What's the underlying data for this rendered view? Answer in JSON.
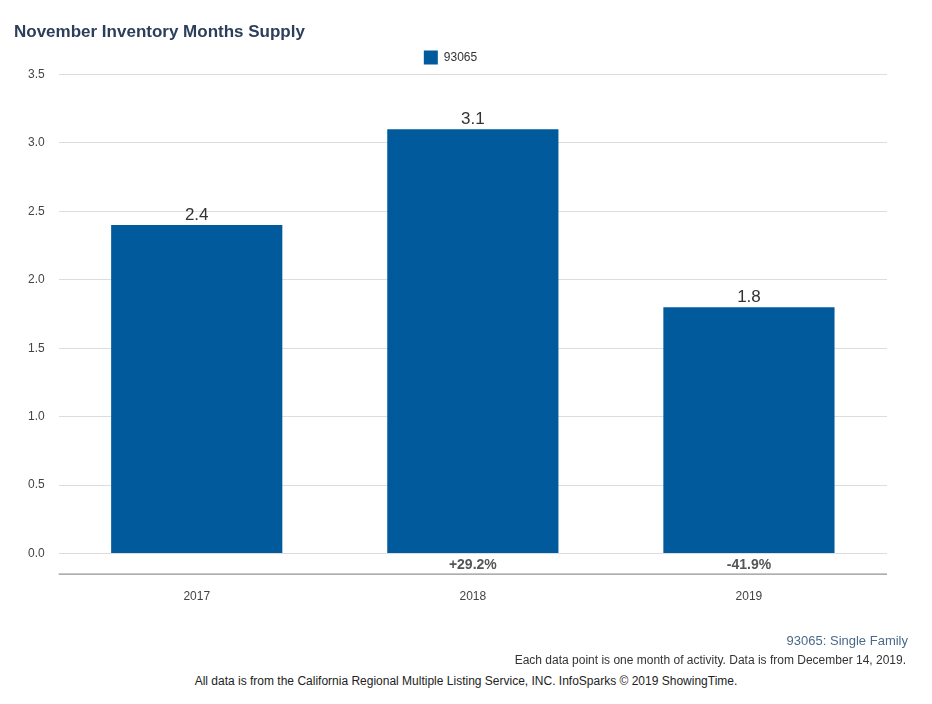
{
  "chart_data": {
    "type": "bar",
    "title": "November Inventory Months Supply",
    "categories": [
      "2017",
      "2018",
      "2019"
    ],
    "series": [
      {
        "name": "93065",
        "color": "#005a9c",
        "values": [
          2.4,
          3.1,
          1.8
        ]
      }
    ],
    "change_labels": [
      null,
      "+29.2%",
      "-41.9%"
    ],
    "ylim": [
      0,
      3.5
    ],
    "yticks": [
      {
        "value": 0,
        "label": "0.0"
      },
      0.5,
      {
        "value": 1,
        "label": "1.0"
      },
      1.5,
      {
        "value": 2,
        "label": "2.0"
      },
      2.5,
      {
        "value": 3,
        "label": "3.0"
      },
      3.5
    ],
    "grid": true,
    "legend": "top",
    "data_labels": true,
    "annotations": [
      "93065: Single Family",
      "Each data point is one month of activity. Data is from December 14, 2019.",
      "All data is from the California Regional Multiple Listing Service, INC. InfoSparks © 2019 ShowingTime."
    ]
  }
}
